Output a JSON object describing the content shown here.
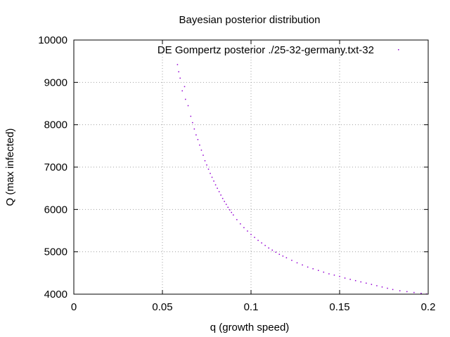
{
  "chart_data": {
    "type": "scatter",
    "title": "Bayesian posterior distribution",
    "xlabel": "q (growth speed)",
    "ylabel": "Q (max infected)",
    "xlim": [
      0,
      0.2
    ],
    "ylim": [
      4000,
      10000
    ],
    "x_ticks": [
      0,
      0.05,
      0.1,
      0.15,
      0.2
    ],
    "x_tick_labels": [
      "0",
      "0.05",
      "0.1",
      "0.15",
      "0.2"
    ],
    "y_ticks": [
      4000,
      5000,
      6000,
      7000,
      8000,
      9000,
      10000
    ],
    "y_tick_labels": [
      "4000",
      "5000",
      "6000",
      "7000",
      "8000",
      "9000",
      "10000"
    ],
    "grid": true,
    "legend_position": "top-right",
    "series": [
      {
        "name": "DE Gompertz posterior ./25-32-germany.txt-32",
        "color": "#9400d3",
        "points": [
          [
            0.0585,
            9420
          ],
          [
            0.0592,
            9250
          ],
          [
            0.06,
            9100
          ],
          [
            0.0612,
            8800
          ],
          [
            0.0625,
            8900
          ],
          [
            0.063,
            8600
          ],
          [
            0.0645,
            8450
          ],
          [
            0.066,
            8200
          ],
          [
            0.067,
            8050
          ],
          [
            0.068,
            7900
          ],
          [
            0.069,
            7760
          ],
          [
            0.07,
            7650
          ],
          [
            0.071,
            7520
          ],
          [
            0.072,
            7400
          ],
          [
            0.073,
            7280
          ],
          [
            0.074,
            7150
          ],
          [
            0.075,
            7050
          ],
          [
            0.076,
            6950
          ],
          [
            0.077,
            6850
          ],
          [
            0.078,
            6760
          ],
          [
            0.079,
            6670
          ],
          [
            0.08,
            6580
          ],
          [
            0.081,
            6500
          ],
          [
            0.082,
            6420
          ],
          [
            0.083,
            6340
          ],
          [
            0.084,
            6260
          ],
          [
            0.085,
            6190
          ],
          [
            0.086,
            6120
          ],
          [
            0.087,
            6050
          ],
          [
            0.088,
            5990
          ],
          [
            0.089,
            5930
          ],
          [
            0.09,
            5870
          ],
          [
            0.092,
            5760
          ],
          [
            0.094,
            5660
          ],
          [
            0.096,
            5570
          ],
          [
            0.098,
            5490
          ],
          [
            0.1,
            5410
          ],
          [
            0.102,
            5340
          ],
          [
            0.104,
            5270
          ],
          [
            0.106,
            5210
          ],
          [
            0.108,
            5150
          ],
          [
            0.11,
            5090
          ],
          [
            0.112,
            5040
          ],
          [
            0.114,
            4990
          ],
          [
            0.116,
            4940
          ],
          [
            0.118,
            4900
          ],
          [
            0.12,
            4860
          ],
          [
            0.123,
            4800
          ],
          [
            0.126,
            4740
          ],
          [
            0.129,
            4690
          ],
          [
            0.132,
            4640
          ],
          [
            0.135,
            4600
          ],
          [
            0.138,
            4560
          ],
          [
            0.141,
            4520
          ],
          [
            0.144,
            4480
          ],
          [
            0.147,
            4450
          ],
          [
            0.15,
            4420
          ],
          [
            0.153,
            4380
          ],
          [
            0.156,
            4350
          ],
          [
            0.159,
            4320
          ],
          [
            0.162,
            4290
          ],
          [
            0.165,
            4260
          ],
          [
            0.168,
            4230
          ],
          [
            0.171,
            4200
          ],
          [
            0.174,
            4170
          ],
          [
            0.177,
            4140
          ],
          [
            0.18,
            4110
          ],
          [
            0.184,
            4080
          ],
          [
            0.188,
            4060
          ],
          [
            0.192,
            4040
          ],
          [
            0.196,
            4020
          ],
          [
            0.199,
            4005
          ]
        ]
      }
    ]
  }
}
